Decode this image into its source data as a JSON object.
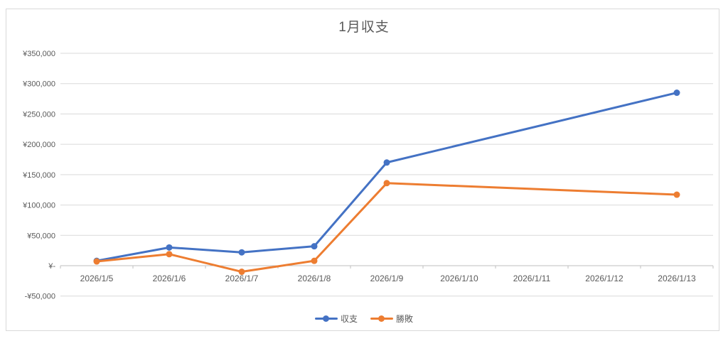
{
  "chart_data": {
    "type": "line",
    "title": "1月収支",
    "categories": [
      "2026/1/5",
      "2026/1/6",
      "2026/1/7",
      "2026/1/8",
      "2026/1/9",
      "2026/1/10",
      "2026/1/11",
      "2026/1/12",
      "2026/1/13"
    ],
    "series": [
      {
        "name": "収支",
        "color": "#4472C4",
        "values": [
          8000,
          30000,
          22000,
          32000,
          170000,
          null,
          null,
          null,
          285000
        ]
      },
      {
        "name": "勝敗",
        "color": "#ED7D31",
        "values": [
          7000,
          19000,
          -10000,
          8000,
          136000,
          null,
          null,
          null,
          117000
        ]
      }
    ],
    "ylim": [
      -50000,
      350000
    ],
    "y_ticks": [
      {
        "value": 350000,
        "label": "¥350,000"
      },
      {
        "value": 300000,
        "label": "¥300,000"
      },
      {
        "value": 250000,
        "label": "¥250,000"
      },
      {
        "value": 200000,
        "label": "¥200,000"
      },
      {
        "value": 150000,
        "label": "¥150,000"
      },
      {
        "value": 100000,
        "label": "¥100,000"
      },
      {
        "value": 50000,
        "label": "¥50,000"
      },
      {
        "value": 0,
        "label": "¥-"
      },
      {
        "value": -50000,
        "label": "-¥50,000"
      }
    ],
    "grid": true,
    "legend_position": "bottom",
    "colors": {
      "grid": "#D9D9D9",
      "axis": "#BFBFBF",
      "text": "#595959"
    }
  }
}
